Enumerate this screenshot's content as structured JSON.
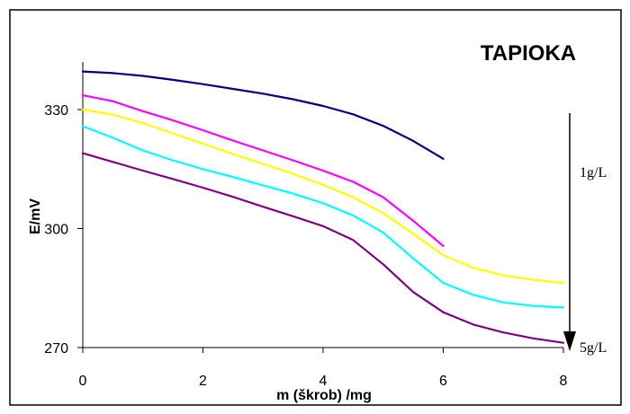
{
  "chart_data": {
    "type": "line",
    "title": "TAPIOKA",
    "xlabel": "m (škrob) /mg",
    "ylabel": "E/mV",
    "xlim": [
      0,
      8
    ],
    "ylim": [
      270,
      342
    ],
    "x_ticks": [
      "0",
      "2",
      "4",
      "6",
      "8"
    ],
    "y_ticks": [
      "270",
      "300",
      "330"
    ],
    "grid": false,
    "legend": "none",
    "annotations": {
      "top_label": "1g/L",
      "bottom_label": "5g/L",
      "arrow": "concentration increases downward"
    },
    "series": [
      {
        "color": "#000080",
        "x": [
          0,
          0.5,
          1,
          1.5,
          2,
          2.5,
          3,
          3.5,
          4,
          4.5,
          5,
          5.5,
          6
        ],
        "y": [
          339.6,
          339.2,
          338.5,
          337.5,
          336.4,
          335.2,
          334.0,
          332.6,
          330.9,
          328.8,
          325.9,
          322.1,
          317.6
        ]
      },
      {
        "color": "#ff00ff",
        "x": [
          0,
          0.5,
          1,
          1.5,
          2,
          2.5,
          3,
          3.5,
          4,
          4.5,
          5,
          5.5,
          6
        ],
        "y": [
          333.6,
          332.1,
          329.6,
          327.3,
          324.8,
          322.2,
          319.7,
          317.2,
          314.6,
          311.8,
          307.9,
          302.0,
          295.6
        ]
      },
      {
        "color": "#ffff00",
        "x": [
          0,
          0.5,
          1,
          1.5,
          2,
          2.5,
          3,
          3.5,
          4,
          4.5,
          5,
          5.5,
          6,
          6.5,
          7,
          7.5,
          8
        ],
        "y": [
          330.0,
          328.7,
          326.6,
          324.0,
          321.4,
          318.8,
          316.3,
          313.8,
          311.0,
          307.9,
          303.9,
          298.7,
          293.3,
          290.1,
          288.2,
          287.1,
          286.3
        ]
      },
      {
        "color": "#00ffff",
        "x": [
          0,
          0.5,
          1,
          1.5,
          2,
          2.5,
          3,
          3.5,
          4,
          4.5,
          5,
          5.5,
          6,
          6.5,
          7,
          7.5,
          8
        ],
        "y": [
          325.8,
          322.9,
          319.7,
          317.2,
          315.0,
          313.0,
          310.9,
          308.8,
          306.4,
          303.3,
          299.0,
          292.5,
          286.3,
          283.3,
          281.4,
          280.5,
          280.1
        ]
      },
      {
        "color": "#800080",
        "x": [
          0,
          0.5,
          1,
          1.5,
          2,
          2.5,
          3,
          3.5,
          4,
          4.5,
          5,
          5.5,
          6,
          6.5,
          7,
          7.5,
          8
        ],
        "y": [
          319.0,
          316.8,
          314.6,
          312.5,
          310.3,
          308.0,
          305.5,
          303.1,
          300.6,
          297.1,
          291.0,
          284.0,
          278.9,
          275.8,
          273.8,
          272.3,
          271.2
        ]
      }
    ]
  }
}
